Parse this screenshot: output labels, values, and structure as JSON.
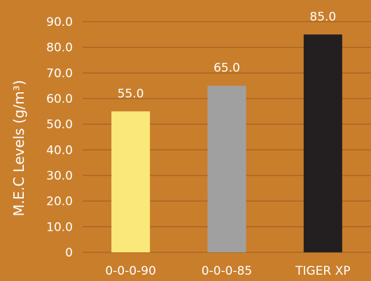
{
  "chart_data": {
    "type": "bar",
    "categories": [
      "0-0-0-90",
      "0-0-0-85",
      "TIGER XP"
    ],
    "values": [
      55.0,
      65.0,
      85.0
    ],
    "data_labels": [
      "55.0",
      "65.0",
      "85.0"
    ],
    "title": "",
    "xlabel": "",
    "ylabel": "M.E.C Levels (g/m³)",
    "ylim": [
      0,
      90
    ],
    "yticks": [
      0,
      10,
      20,
      30,
      40,
      50,
      60,
      70,
      80,
      90
    ],
    "ytick_labels": [
      "0",
      "10.0",
      "20.0",
      "30.0",
      "40.0",
      "50.0",
      "60.0",
      "70.0",
      "80.0",
      "90.0"
    ],
    "grid": true,
    "legend": "none",
    "bar_colors": [
      "#fbe87a",
      "#a0a0a0",
      "#231f20"
    ],
    "background_color": "#c97e2c",
    "gridline_color": "#9a5c1c",
    "text_color": "#ffffff"
  }
}
